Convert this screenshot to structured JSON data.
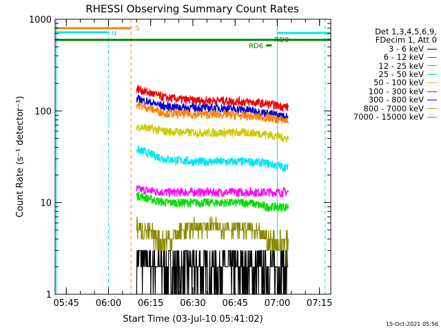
{
  "chart_data": {
    "type": "line",
    "title": "RHESSI Observing Summary Count Rates",
    "xlabel": "Start Time (03-Jul-10 05:41:02)",
    "ylabel": "Count Rate (s⁻¹ detector⁻¹)",
    "yscale": "log",
    "ylim": [
      1,
      1000
    ],
    "xlim": [
      "05:41:02",
      "07:19:00"
    ],
    "x_ticks": [
      "05:45",
      "06:00",
      "06:15",
      "06:30",
      "06:45",
      "07:00",
      "07:15"
    ],
    "y_ticks": [
      "1",
      "10",
      "100",
      "1000"
    ],
    "grid": false,
    "legend": {
      "placement": "right-outside",
      "header": [
        "Det 1,3,4,5,6,9,",
        "FDecim 1, Att 0"
      ]
    },
    "series": [
      {
        "name": "3 - 6 keV",
        "color": "#000000",
        "x": [
          "06:10",
          "06:20",
          "06:30",
          "06:40",
          "06:50",
          "06:56",
          "07:04"
        ],
        "y": [
          2.5,
          2.0,
          2.0,
          2.0,
          2.0,
          2.0,
          2.0
        ]
      },
      {
        "name": "6 - 12 keV",
        "color": "#ff00ff",
        "x": [
          "06:10",
          "06:20",
          "06:30",
          "06:40",
          "06:50",
          "06:56",
          "07:04"
        ],
        "y": [
          14,
          13,
          13,
          13,
          13,
          13,
          13
        ]
      },
      {
        "name": "12 - 25 keV",
        "color": "#00dd00",
        "x": [
          "06:10",
          "06:20",
          "06:30",
          "06:40",
          "06:50",
          "06:56",
          "07:04"
        ],
        "y": [
          12,
          10,
          10,
          10,
          10,
          9,
          9
        ]
      },
      {
        "name": "25 - 50 keV",
        "color": "#00e5ee",
        "x": [
          "06:10",
          "06:20",
          "06:30",
          "06:40",
          "06:50",
          "06:56",
          "07:04"
        ],
        "y": [
          38,
          30,
          28,
          28,
          28,
          27,
          24
        ]
      },
      {
        "name": "50 - 100 keV",
        "color": "#cccc00",
        "x": [
          "06:10",
          "06:20",
          "06:30",
          "06:40",
          "06:50",
          "06:56",
          "07:04"
        ],
        "y": [
          68,
          60,
          58,
          58,
          58,
          56,
          50
        ]
      },
      {
        "name": "100 - 300 keV",
        "color": "#ee0000",
        "x": [
          "06:10",
          "06:20",
          "06:30",
          "06:40",
          "06:50",
          "06:56",
          "07:04"
        ],
        "y": [
          175,
          140,
          130,
          130,
          125,
          120,
          110
        ]
      },
      {
        "name": "300 - 800 keV",
        "color": "#0000dd",
        "x": [
          "06:10",
          "06:20",
          "06:30",
          "06:40",
          "06:50",
          "06:56",
          "07:04"
        ],
        "y": [
          135,
          112,
          108,
          108,
          102,
          95,
          85
        ]
      },
      {
        "name": "800 - 7000 keV",
        "color": "#ff8000",
        "x": [
          "06:10",
          "06:20",
          "06:30",
          "06:40",
          "06:50",
          "06:56",
          "07:04"
        ],
        "y": [
          118,
          95,
          92,
          92,
          88,
          85,
          78
        ]
      },
      {
        "name": "7000 - 15000 keV",
        "color": "#8b8b00",
        "x": [
          "06:10",
          "06:20",
          "06:30",
          "06:40",
          "06:50",
          "06:56",
          "07:04"
        ],
        "y": [
          5.5,
          3.8,
          5.5,
          5.5,
          5.2,
          4.0,
          3.5
        ]
      }
    ],
    "annotations": [
      {
        "text": "S",
        "color": "#ff8000"
      },
      {
        "text": "N",
        "color": "#00e5ee"
      },
      {
        "text": "RD0",
        "color": "#008000"
      },
      {
        "text": "RD6",
        "color": "#008000"
      }
    ],
    "timestamp": "15-Oct-2021 05:56"
  }
}
